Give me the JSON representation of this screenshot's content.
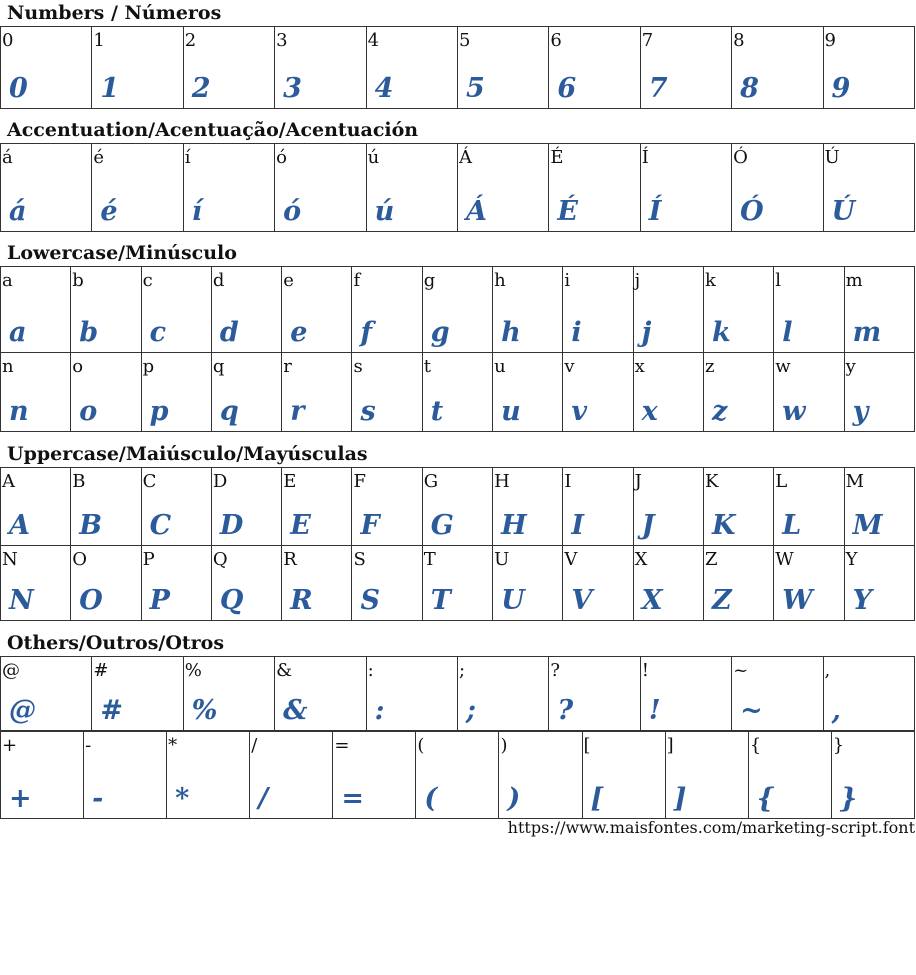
{
  "glyph_color": "#2b5b9b",
  "sections": [
    {
      "title": "Numbers / Números",
      "rows": [
        [
          "0",
          "1",
          "2",
          "3",
          "4",
          "5",
          "6",
          "7",
          "8",
          "9"
        ]
      ]
    },
    {
      "title": "Accentuation/Acentuação/Acentuación",
      "rows": [
        [
          "á",
          "é",
          "í",
          "ó",
          "ú",
          "Á",
          "É",
          "Í",
          "Ó",
          "Ú"
        ]
      ]
    },
    {
      "title": "Lowercase/Minúsculo",
      "rows": [
        [
          "a",
          "b",
          "c",
          "d",
          "e",
          "f",
          "g",
          "h",
          "i",
          "j",
          "k",
          "l",
          "m"
        ],
        [
          "n",
          "o",
          "p",
          "q",
          "r",
          "s",
          "t",
          "u",
          "v",
          "x",
          "z",
          "w",
          "y"
        ]
      ]
    },
    {
      "title": "Uppercase/Maiúsculo/Mayúsculas",
      "rows": [
        [
          "A",
          "B",
          "C",
          "D",
          "E",
          "F",
          "G",
          "H",
          "I",
          "J",
          "K",
          "L",
          "M"
        ],
        [
          "N",
          "O",
          "P",
          "Q",
          "R",
          "S",
          "T",
          "U",
          "V",
          "X",
          "Z",
          "W",
          "Y"
        ]
      ]
    },
    {
      "title": "Others/Outros/Otros",
      "rows": [
        [
          "@",
          "#",
          "%",
          "&",
          ":",
          ";",
          "?",
          "!",
          "~",
          ","
        ],
        [
          "+",
          "-",
          "*",
          "/",
          "=",
          "(",
          ")",
          "[",
          "]",
          "{",
          "}"
        ]
      ]
    }
  ],
  "footer_url": "https://www.maisfontes.com/marketing-script.font"
}
